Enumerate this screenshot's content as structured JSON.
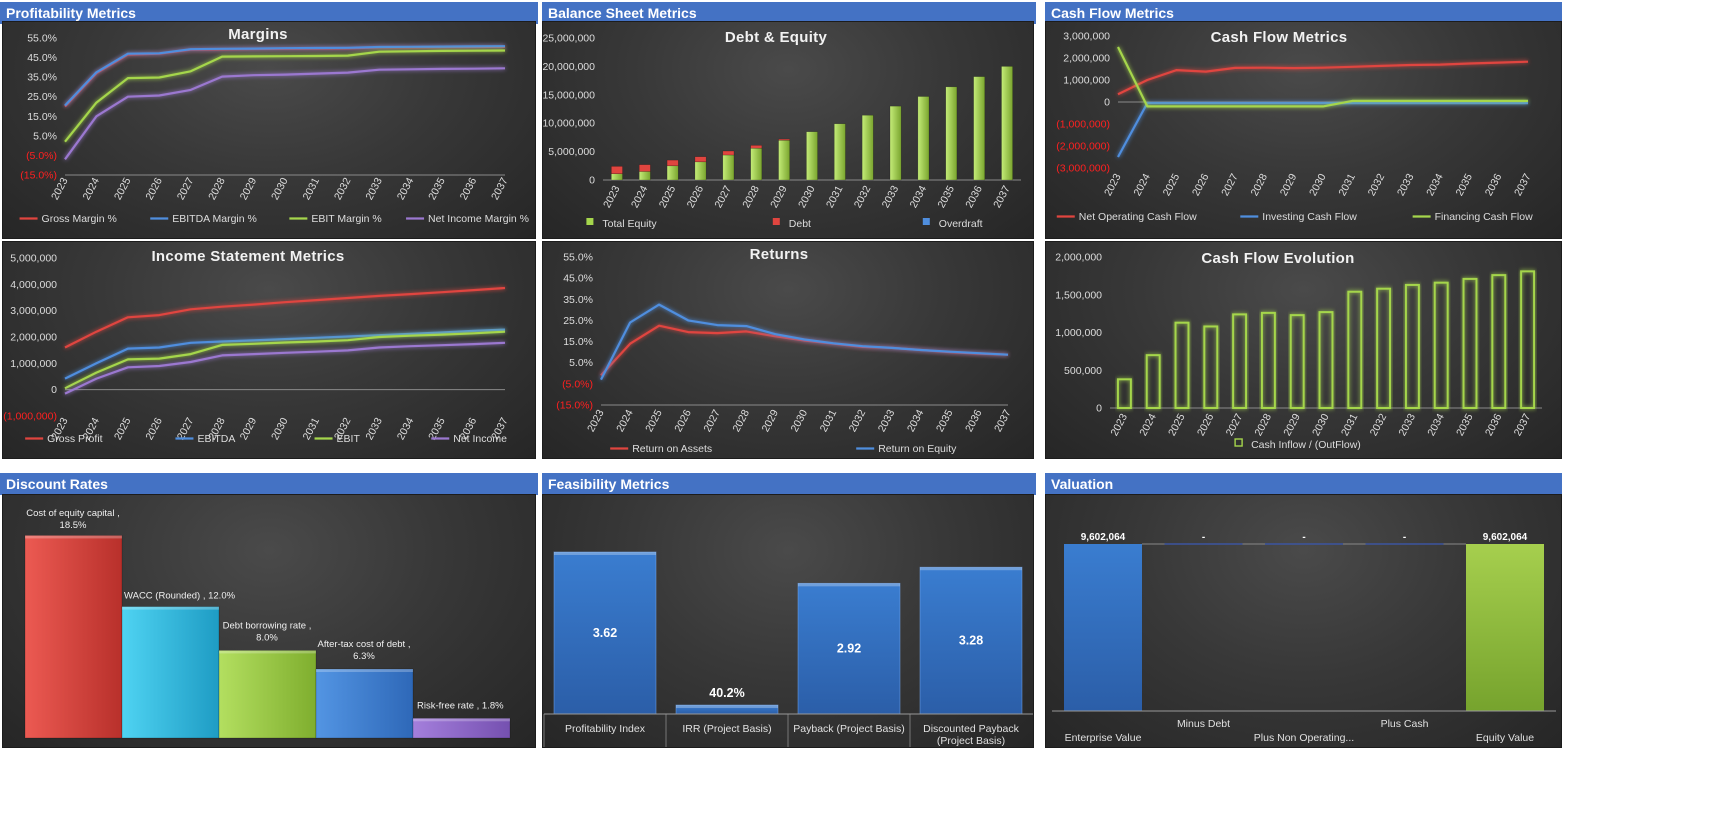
{
  "sections": {
    "profitability": "Profitability Metrics",
    "balance": "Balance Sheet Metrics",
    "cashflow": "Cash Flow Metrics",
    "discount": "Discount Rates",
    "feasibility": "Feasibility Metrics",
    "valuation": "Valuation"
  },
  "colors": {
    "header": "#4472c4",
    "red": "#e0453f",
    "blue": "#4f8ede",
    "green": "#a5d64c",
    "purple": "#9b78d0",
    "negative": "#ff2020"
  },
  "chart_data": [
    {
      "id": "margins",
      "type": "line",
      "title": "Margins",
      "x": [
        "2023",
        "2024",
        "2025",
        "2026",
        "2027",
        "2028",
        "2029",
        "2030",
        "2031",
        "2032",
        "2033",
        "2034",
        "2035",
        "2036",
        "2037"
      ],
      "ylim": [
        -15,
        55
      ],
      "ytick_labels": [
        "55.0%",
        "45.0%",
        "35.0%",
        "25.0%",
        "15.0%",
        "5.0%",
        "(5.0%)",
        "(15.0%)"
      ],
      "legend_position": "bottom",
      "series": [
        {
          "name": "Gross Margin %",
          "color": "red",
          "values": [
            20,
            37,
            46.5,
            47,
            49,
            49.2,
            49.4,
            49.5,
            49.6,
            49.7,
            50.2,
            50.2,
            50.3,
            50.4,
            50.5
          ]
        },
        {
          "name": "EBITDA Margin %",
          "color": "blue",
          "values": [
            20.5,
            37.5,
            47,
            47.2,
            49.3,
            49.5,
            49.6,
            49.8,
            49.9,
            50,
            50.4,
            50.5,
            50.6,
            50.7,
            50.8
          ]
        },
        {
          "name": "EBIT Margin %",
          "color": "green",
          "values": [
            2,
            22,
            34.5,
            34.8,
            38,
            45.5,
            45.6,
            45.7,
            45.8,
            46,
            48,
            48.2,
            48.4,
            48.5,
            48.6
          ]
        },
        {
          "name": "Net Income Margin %",
          "color": "purple",
          "values": [
            -7,
            15,
            25,
            25.6,
            28.5,
            35.3,
            36,
            36.3,
            36.8,
            37.3,
            38.8,
            39,
            39.2,
            39.3,
            39.5
          ]
        }
      ]
    },
    {
      "id": "debt_equity",
      "type": "bar",
      "title": "Debt & Equity",
      "categories": [
        "2023",
        "2024",
        "2025",
        "2026",
        "2027",
        "2028",
        "2029",
        "2030",
        "2031",
        "2032",
        "2033",
        "2034",
        "2035",
        "2036",
        "2037"
      ],
      "ylim": [
        0,
        25000000
      ],
      "ytick_labels": [
        "25,000,000",
        "20,000,000",
        "15,000,000",
        "10,000,000",
        "5,000,000",
        "0"
      ],
      "legend_position": "bottom",
      "series": [
        {
          "name": "Total Equity",
          "color": "green",
          "values": [
            1100000,
            1500000,
            2500000,
            3200000,
            4400000,
            5600000,
            7000000,
            8500000,
            9900000,
            11400000,
            13000000,
            14700000,
            16400000,
            18200000,
            20000000
          ]
        },
        {
          "name": "Debt",
          "color": "red",
          "values": [
            1300000,
            1200000,
            1000000,
            900000,
            700000,
            500000,
            200000,
            0,
            0,
            0,
            0,
            0,
            0,
            0,
            0
          ]
        },
        {
          "name": "Overdraft",
          "color": "blue",
          "values": [
            0,
            0,
            0,
            0,
            0,
            0,
            0,
            0,
            0,
            0,
            0,
            0,
            0,
            0,
            0
          ]
        }
      ]
    },
    {
      "id": "cash_flow_metrics",
      "type": "line",
      "title": "Cash Flow Metrics",
      "x": [
        "2023",
        "2024",
        "2025",
        "2026",
        "2027",
        "2028",
        "2029",
        "2030",
        "2031",
        "2032",
        "2033",
        "2034",
        "2035",
        "2036",
        "2037"
      ],
      "ylim": [
        -3000000,
        3000000
      ],
      "ytick_labels": [
        "3,000,000",
        "2,000,000",
        "1,000,000",
        "0",
        "(1,000,000)",
        "(2,000,000)",
        "(3,000,000)"
      ],
      "legend_position": "bottom",
      "series": [
        {
          "name": "Net Operating Cash Flow",
          "color": "red",
          "values": [
            350000,
            1000000,
            1450000,
            1380000,
            1550000,
            1560000,
            1540000,
            1560000,
            1600000,
            1640000,
            1680000,
            1700000,
            1750000,
            1790000,
            1830000
          ]
        },
        {
          "name": "Investing Cash Flow",
          "color": "blue",
          "values": [
            -2500000,
            -50000,
            -50000,
            -50000,
            -50000,
            -50000,
            -50000,
            -50000,
            -50000,
            -50000,
            -50000,
            -50000,
            -50000,
            -50000,
            -50000
          ]
        },
        {
          "name": "Financing Cash Flow",
          "color": "green",
          "values": [
            2500000,
            -200000,
            -200000,
            -200000,
            -200000,
            -200000,
            -200000,
            -200000,
            50000,
            50000,
            50000,
            50000,
            50000,
            50000,
            50000
          ]
        }
      ]
    },
    {
      "id": "income_statement",
      "type": "line",
      "title": "Income Statement Metrics",
      "x": [
        "2023",
        "2024",
        "2025",
        "2026",
        "2027",
        "2028",
        "2029",
        "2030",
        "2031",
        "2032",
        "2033",
        "2034",
        "2035",
        "2036",
        "2037"
      ],
      "ylim": [
        -1000000,
        5000000
      ],
      "ytick_labels": [
        "5,000,000",
        "4,000,000",
        "3,000,000",
        "2,000,000",
        "1,000,000",
        "0",
        "(1,000,000)"
      ],
      "legend_position": "bottom",
      "series": [
        {
          "name": "Gross Profit",
          "color": "red",
          "values": [
            1600000,
            2200000,
            2750000,
            2830000,
            3050000,
            3150000,
            3230000,
            3320000,
            3400000,
            3480000,
            3560000,
            3630000,
            3700000,
            3780000,
            3860000
          ]
        },
        {
          "name": "EBITDA",
          "color": "blue",
          "values": [
            420000,
            1000000,
            1560000,
            1600000,
            1780000,
            1830000,
            1870000,
            1920000,
            1970000,
            2020000,
            2070000,
            2120000,
            2170000,
            2230000,
            2280000
          ]
        },
        {
          "name": "EBIT",
          "color": "green",
          "values": [
            50000,
            650000,
            1150000,
            1180000,
            1350000,
            1700000,
            1740000,
            1790000,
            1830000,
            1880000,
            2000000,
            2050000,
            2090000,
            2140000,
            2200000
          ]
        },
        {
          "name": "Net Income",
          "color": "purple",
          "values": [
            -150000,
            420000,
            850000,
            900000,
            1050000,
            1300000,
            1350000,
            1400000,
            1440000,
            1490000,
            1600000,
            1650000,
            1690000,
            1730000,
            1780000
          ]
        }
      ]
    },
    {
      "id": "returns",
      "type": "line",
      "title": "Returns",
      "x": [
        "2023",
        "2024",
        "2025",
        "2026",
        "2027",
        "2028",
        "2029",
        "2030",
        "2031",
        "2032",
        "2033",
        "2034",
        "2035",
        "2036",
        "2037"
      ],
      "ylim": [
        -15,
        55
      ],
      "ytick_labels": [
        "55.0%",
        "45.0%",
        "35.0%",
        "25.0%",
        "15.0%",
        "5.0%",
        "(5.0%)",
        "(15.0%)"
      ],
      "legend_position": "bottom",
      "series": [
        {
          "name": "Return on Assets",
          "color": "red",
          "values": [
            -1,
            14,
            22.5,
            19.5,
            19,
            19.8,
            17.5,
            15.5,
            14,
            12.5,
            12,
            11,
            10,
            9.3,
            8.8
          ]
        },
        {
          "name": "Return on Equity",
          "color": "blue",
          "values": [
            -3,
            24,
            32.5,
            25,
            22.8,
            22.3,
            18.5,
            16,
            14.2,
            12.8,
            12,
            11,
            10.2,
            9.5,
            8.8
          ]
        }
      ]
    },
    {
      "id": "cash_flow_evolution",
      "type": "bar",
      "title": "Cash Flow Evolution",
      "categories": [
        "2023",
        "2024",
        "2025",
        "2026",
        "2027",
        "2028",
        "2029",
        "2030",
        "2031",
        "2032",
        "2033",
        "2034",
        "2035",
        "2036",
        "2037"
      ],
      "ylim": [
        0,
        2000000
      ],
      "ytick_labels": [
        "2,000,000",
        "1,500,000",
        "1,000,000",
        "500,000",
        "0"
      ],
      "legend_position": "bottom",
      "series": [
        {
          "name": "Cash Inflow / (OutFlow)",
          "color": "green",
          "values": [
            380000,
            700000,
            1130000,
            1080000,
            1240000,
            1260000,
            1230000,
            1270000,
            1540000,
            1580000,
            1630000,
            1660000,
            1710000,
            1760000,
            1810000
          ]
        }
      ]
    },
    {
      "id": "discount_rates",
      "type": "bar",
      "categories": [
        "Cost of equity capital",
        "WACC (Rounded)",
        "Debt borrowing rate",
        "After-tax cost of debt",
        "Risk-free rate"
      ],
      "values": [
        18.5,
        12.0,
        8.0,
        6.3,
        1.8
      ],
      "data_labels": [
        "Cost of equity capital , 18.5%",
        "WACC (Rounded) , 12.0%",
        "Debt borrowing rate , 8.0%",
        "After-tax cost of debt , 6.3%",
        "Risk-free rate , 1.8%"
      ],
      "colors": [
        "red",
        "cyan",
        "green",
        "blue",
        "purple"
      ]
    },
    {
      "id": "feasibility",
      "type": "bar",
      "categories": [
        "Profitability Index",
        "IRR (Project Basis)",
        "Payback  (Project Basis)",
        "Discounted Payback (Project Basis)"
      ],
      "values": [
        3.62,
        0.402,
        2.92,
        3.28
      ],
      "data_labels": [
        "3.62",
        "40.2%",
        "2.92",
        "3.28"
      ]
    },
    {
      "id": "valuation",
      "type": "bar",
      "categories": [
        "Enterprise Value",
        "Minus Debt",
        "Plus Non Operating...",
        "Plus Cash",
        "Equity Value"
      ],
      "values": [
        9602064,
        0,
        0,
        0,
        9602064
      ],
      "data_labels": [
        "9,602,064",
        "-",
        "-",
        "-",
        "9,602,064"
      ]
    }
  ]
}
